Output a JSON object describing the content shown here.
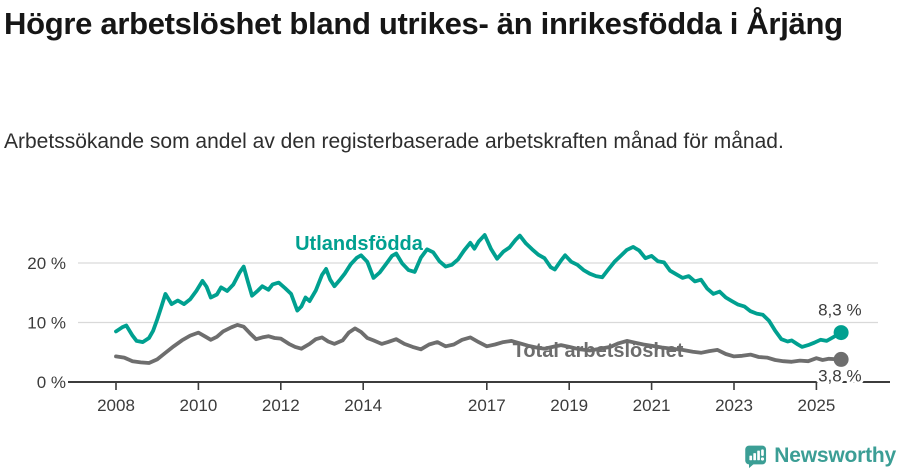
{
  "chart_data": {
    "type": "line",
    "title": "Högre arbetslöshet bland utrikes- än inrikesfödda i Årjäng",
    "subtitle": "Arbetssökande som andel av den registerbaserade arbetskraften månad för månad.",
    "unit": "%",
    "grid": "horizontal",
    "xlim": [
      2008,
      2025.6
    ],
    "ylim": [
      0,
      25
    ],
    "x_ticks": [
      2008,
      2010,
      2012,
      2014,
      2017,
      2019,
      2021,
      2023,
      2025
    ],
    "y_ticks": [
      {
        "value": 0,
        "label": "0 %"
      },
      {
        "value": 10,
        "label": "10 %"
      },
      {
        "value": 20,
        "label": "20 %"
      }
    ],
    "series": [
      {
        "name": "Utlandsfödda",
        "color": "#00a090",
        "final_value": 8.3,
        "end_label": "8,3 %",
        "points": [
          [
            2008.0,
            8.5
          ],
          [
            2008.15,
            9.2
          ],
          [
            2008.25,
            9.5
          ],
          [
            2008.4,
            7.8
          ],
          [
            2008.5,
            6.9
          ],
          [
            2008.65,
            6.7
          ],
          [
            2008.8,
            7.4
          ],
          [
            2008.9,
            8.6
          ],
          [
            2009.0,
            10.5
          ],
          [
            2009.1,
            12.6
          ],
          [
            2009.2,
            14.8
          ],
          [
            2009.35,
            13.1
          ],
          [
            2009.5,
            13.7
          ],
          [
            2009.65,
            13.1
          ],
          [
            2009.8,
            13.9
          ],
          [
            2009.95,
            15.3
          ],
          [
            2010.1,
            17.0
          ],
          [
            2010.2,
            16.0
          ],
          [
            2010.3,
            14.2
          ],
          [
            2010.45,
            14.7
          ],
          [
            2010.55,
            15.9
          ],
          [
            2010.7,
            15.3
          ],
          [
            2010.85,
            16.4
          ],
          [
            2011.0,
            18.4
          ],
          [
            2011.1,
            19.4
          ],
          [
            2011.2,
            16.9
          ],
          [
            2011.3,
            14.5
          ],
          [
            2011.45,
            15.4
          ],
          [
            2011.55,
            16.1
          ],
          [
            2011.7,
            15.5
          ],
          [
            2011.8,
            16.4
          ],
          [
            2011.95,
            16.7
          ],
          [
            2012.1,
            15.8
          ],
          [
            2012.25,
            14.8
          ],
          [
            2012.4,
            12.0
          ],
          [
            2012.5,
            12.7
          ],
          [
            2012.6,
            14.2
          ],
          [
            2012.7,
            13.6
          ],
          [
            2012.85,
            15.4
          ],
          [
            2013.0,
            18.0
          ],
          [
            2013.1,
            19.0
          ],
          [
            2013.2,
            17.2
          ],
          [
            2013.3,
            16.1
          ],
          [
            2013.45,
            17.3
          ],
          [
            2013.55,
            18.2
          ],
          [
            2013.7,
            19.8
          ],
          [
            2013.85,
            20.9
          ],
          [
            2013.95,
            21.3
          ],
          [
            2014.1,
            20.2
          ],
          [
            2014.25,
            17.5
          ],
          [
            2014.4,
            18.4
          ],
          [
            2014.55,
            19.8
          ],
          [
            2014.7,
            21.2
          ],
          [
            2014.8,
            21.6
          ],
          [
            2014.95,
            19.9
          ],
          [
            2015.1,
            18.8
          ],
          [
            2015.25,
            18.5
          ],
          [
            2015.4,
            20.9
          ],
          [
            2015.55,
            22.3
          ],
          [
            2015.7,
            21.8
          ],
          [
            2015.85,
            20.3
          ],
          [
            2016.0,
            19.4
          ],
          [
            2016.15,
            19.7
          ],
          [
            2016.3,
            20.6
          ],
          [
            2016.45,
            22.1
          ],
          [
            2016.6,
            23.4
          ],
          [
            2016.7,
            22.4
          ],
          [
            2016.8,
            23.6
          ],
          [
            2016.95,
            24.7
          ],
          [
            2017.1,
            22.4
          ],
          [
            2017.25,
            20.7
          ],
          [
            2017.4,
            21.9
          ],
          [
            2017.55,
            22.6
          ],
          [
            2017.7,
            23.9
          ],
          [
            2017.8,
            24.6
          ],
          [
            2017.95,
            23.3
          ],
          [
            2018.1,
            22.3
          ],
          [
            2018.25,
            21.4
          ],
          [
            2018.4,
            20.8
          ],
          [
            2018.55,
            19.3
          ],
          [
            2018.65,
            18.9
          ],
          [
            2018.8,
            20.4
          ],
          [
            2018.9,
            21.3
          ],
          [
            2019.05,
            20.2
          ],
          [
            2019.2,
            19.7
          ],
          [
            2019.35,
            18.8
          ],
          [
            2019.5,
            18.2
          ],
          [
            2019.65,
            17.8
          ],
          [
            2019.8,
            17.6
          ],
          [
            2019.95,
            18.9
          ],
          [
            2020.1,
            20.2
          ],
          [
            2020.25,
            21.2
          ],
          [
            2020.4,
            22.2
          ],
          [
            2020.55,
            22.7
          ],
          [
            2020.7,
            22.1
          ],
          [
            2020.85,
            20.8
          ],
          [
            2021.0,
            21.2
          ],
          [
            2021.15,
            20.3
          ],
          [
            2021.3,
            20.1
          ],
          [
            2021.45,
            18.7
          ],
          [
            2021.6,
            18.1
          ],
          [
            2021.75,
            17.5
          ],
          [
            2021.9,
            17.8
          ],
          [
            2022.05,
            16.9
          ],
          [
            2022.2,
            17.2
          ],
          [
            2022.35,
            15.7
          ],
          [
            2022.5,
            14.8
          ],
          [
            2022.65,
            15.2
          ],
          [
            2022.8,
            14.2
          ],
          [
            2022.95,
            13.6
          ],
          [
            2023.1,
            13.0
          ],
          [
            2023.25,
            12.7
          ],
          [
            2023.4,
            11.9
          ],
          [
            2023.55,
            11.5
          ],
          [
            2023.7,
            11.3
          ],
          [
            2023.85,
            10.3
          ],
          [
            2024.0,
            8.6
          ],
          [
            2024.15,
            7.2
          ],
          [
            2024.3,
            6.8
          ],
          [
            2024.4,
            7.0
          ],
          [
            2024.55,
            6.3
          ],
          [
            2024.65,
            5.9
          ],
          [
            2024.8,
            6.2
          ],
          [
            2024.95,
            6.6
          ],
          [
            2025.1,
            7.1
          ],
          [
            2025.25,
            6.9
          ],
          [
            2025.4,
            7.5
          ],
          [
            2025.6,
            8.3
          ]
        ]
      },
      {
        "name": "Total arbetslöshet",
        "color": "#6e6e6e",
        "final_value": 3.8,
        "end_label": "3,8 %",
        "points": [
          [
            2008.0,
            4.3
          ],
          [
            2008.2,
            4.1
          ],
          [
            2008.4,
            3.5
          ],
          [
            2008.6,
            3.3
          ],
          [
            2008.8,
            3.2
          ],
          [
            2009.0,
            3.8
          ],
          [
            2009.2,
            4.9
          ],
          [
            2009.4,
            6.0
          ],
          [
            2009.6,
            7.0
          ],
          [
            2009.8,
            7.8
          ],
          [
            2010.0,
            8.3
          ],
          [
            2010.15,
            7.7
          ],
          [
            2010.3,
            7.1
          ],
          [
            2010.45,
            7.6
          ],
          [
            2010.6,
            8.5
          ],
          [
            2010.8,
            9.2
          ],
          [
            2010.95,
            9.6
          ],
          [
            2011.1,
            9.3
          ],
          [
            2011.25,
            8.2
          ],
          [
            2011.4,
            7.2
          ],
          [
            2011.55,
            7.5
          ],
          [
            2011.7,
            7.7
          ],
          [
            2011.85,
            7.4
          ],
          [
            2012.0,
            7.3
          ],
          [
            2012.2,
            6.4
          ],
          [
            2012.35,
            5.9
          ],
          [
            2012.5,
            5.6
          ],
          [
            2012.7,
            6.4
          ],
          [
            2012.85,
            7.2
          ],
          [
            2013.0,
            7.5
          ],
          [
            2013.15,
            6.8
          ],
          [
            2013.3,
            6.4
          ],
          [
            2013.5,
            7.0
          ],
          [
            2013.65,
            8.3
          ],
          [
            2013.8,
            9.0
          ],
          [
            2013.95,
            8.4
          ],
          [
            2014.1,
            7.4
          ],
          [
            2014.25,
            7.0
          ],
          [
            2014.45,
            6.4
          ],
          [
            2014.6,
            6.7
          ],
          [
            2014.8,
            7.2
          ],
          [
            2015.0,
            6.4
          ],
          [
            2015.2,
            5.9
          ],
          [
            2015.4,
            5.5
          ],
          [
            2015.6,
            6.3
          ],
          [
            2015.8,
            6.7
          ],
          [
            2016.0,
            6.0
          ],
          [
            2016.2,
            6.3
          ],
          [
            2016.4,
            7.1
          ],
          [
            2016.6,
            7.5
          ],
          [
            2016.8,
            6.7
          ],
          [
            2017.0,
            6.0
          ],
          [
            2017.2,
            6.3
          ],
          [
            2017.4,
            6.7
          ],
          [
            2017.6,
            6.9
          ],
          [
            2017.8,
            6.5
          ],
          [
            2018.0,
            6.1
          ],
          [
            2018.2,
            5.8
          ],
          [
            2018.4,
            5.6
          ],
          [
            2018.6,
            5.9
          ],
          [
            2018.8,
            6.2
          ],
          [
            2019.0,
            5.9
          ],
          [
            2019.25,
            5.5
          ],
          [
            2019.5,
            5.3
          ],
          [
            2019.75,
            5.6
          ],
          [
            2020.0,
            5.9
          ],
          [
            2020.2,
            6.5
          ],
          [
            2020.4,
            6.9
          ],
          [
            2020.6,
            6.6
          ],
          [
            2020.8,
            6.3
          ],
          [
            2021.0,
            6.1
          ],
          [
            2021.25,
            5.8
          ],
          [
            2021.5,
            5.6
          ],
          [
            2021.75,
            5.4
          ],
          [
            2022.0,
            5.1
          ],
          [
            2022.2,
            4.9
          ],
          [
            2022.4,
            5.2
          ],
          [
            2022.6,
            5.4
          ],
          [
            2022.8,
            4.7
          ],
          [
            2023.0,
            4.3
          ],
          [
            2023.2,
            4.4
          ],
          [
            2023.4,
            4.6
          ],
          [
            2023.6,
            4.2
          ],
          [
            2023.8,
            4.1
          ],
          [
            2024.0,
            3.7
          ],
          [
            2024.2,
            3.5
          ],
          [
            2024.4,
            3.4
          ],
          [
            2024.6,
            3.6
          ],
          [
            2024.8,
            3.5
          ],
          [
            2025.0,
            4.0
          ],
          [
            2025.15,
            3.7
          ],
          [
            2025.3,
            3.9
          ],
          [
            2025.45,
            3.85
          ],
          [
            2025.6,
            3.8
          ]
        ]
      }
    ]
  },
  "footer": {
    "brand": "Newsworthy",
    "logo_color": "#3b9e95"
  }
}
